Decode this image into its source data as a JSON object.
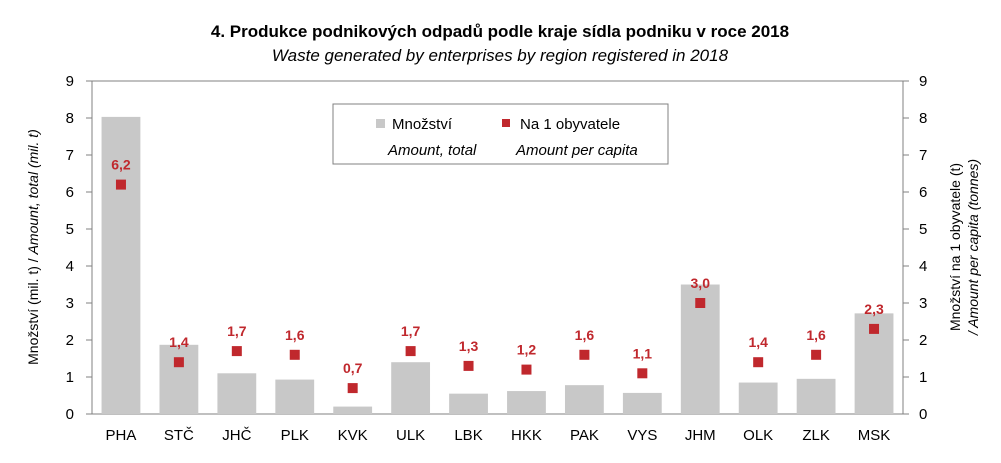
{
  "chart_data": {
    "type": "bar",
    "title": "4. Produkce podnikových odpadů podle kraje sídla podniku v roce 2018",
    "subtitle": "Waste generated by enterprises by region registered in 2018",
    "categories": [
      "PHA",
      "STČ",
      "JHČ",
      "PLK",
      "KVK",
      "ULK",
      "LBK",
      "HKK",
      "PAK",
      "VYS",
      "JHM",
      "OLK",
      "ZLK",
      "MSK"
    ],
    "series": [
      {
        "name": "Množství",
        "name_en": "Amount, total",
        "kind": "bar",
        "axis": "left",
        "color": "#c8c8c8",
        "values": [
          8.03,
          1.87,
          1.1,
          0.93,
          0.2,
          1.4,
          0.55,
          0.62,
          0.78,
          0.57,
          3.5,
          0.85,
          0.95,
          2.72
        ]
      },
      {
        "name": "Na 1 obyvatele",
        "name_en": "Amount per capita",
        "kind": "marker",
        "axis": "right",
        "color": "#c0282d",
        "values": [
          6.2,
          1.4,
          1.7,
          1.6,
          0.7,
          1.7,
          1.3,
          1.2,
          1.6,
          1.1,
          3.0,
          1.4,
          1.6,
          2.3
        ],
        "labels": [
          "6,2",
          "1,4",
          "1,7",
          "1,6",
          "0,7",
          "1,7",
          "1,3",
          "1,2",
          "1,6",
          "1,1",
          "3,0",
          "1,4",
          "1,6",
          "2,3"
        ]
      }
    ],
    "y_left": {
      "label": "Množství  (mil. t) / ",
      "label_en": "Amount, total (mil. t)",
      "ylim": [
        0,
        9
      ],
      "ticks": [
        "0",
        "1",
        "2",
        "3",
        "4",
        "5",
        "6",
        "7",
        "8",
        "9"
      ]
    },
    "y_right": {
      "label": "Množství  na 1 obyvatele  (t)",
      "label_en": "/ Amount per capita (tonnes)",
      "ylim": [
        0,
        9
      ],
      "ticks": [
        "0",
        "1",
        "2",
        "3",
        "4",
        "5",
        "6",
        "7",
        "8",
        "9"
      ]
    },
    "legend": "top-center",
    "grid": false
  }
}
